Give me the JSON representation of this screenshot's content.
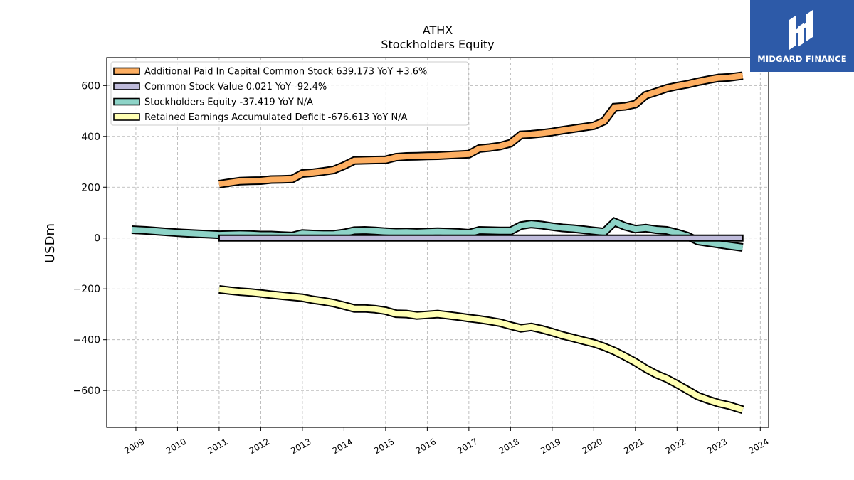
{
  "chart_data": {
    "type": "line",
    "title": "ATHX",
    "subtitle": "Stockholders  Equity",
    "xlabel": "",
    "ylabel": "USDm",
    "xlim": [
      2008.3,
      2024.2
    ],
    "ylim": [
      -745,
      710
    ],
    "yticks": [
      600,
      400,
      200,
      0,
      -200,
      -400,
      -600
    ],
    "ytick_labels": [
      "600",
      "400",
      "200",
      "0",
      "−200",
      "−400",
      "−600"
    ],
    "xticks": [
      2009,
      2010,
      2011,
      2012,
      2013,
      2014,
      2015,
      2016,
      2017,
      2018,
      2019,
      2020,
      2021,
      2022,
      2023,
      2024
    ],
    "xtick_labels": [
      "2009",
      "2010",
      "2011",
      "2012",
      "2013",
      "2014",
      "2015",
      "2016",
      "2017",
      "2018",
      "2019",
      "2020",
      "2021",
      "2022",
      "2023",
      "2024"
    ],
    "grid": true,
    "legend_position": "top-left",
    "series": [
      {
        "name": "Additional Paid In Capital Common Stock  639.173 YoY +3.6%",
        "color": "#fdae61",
        "style": "line",
        "x": [
          2011.0,
          2011.25,
          2011.5,
          2011.75,
          2012.0,
          2012.25,
          2012.5,
          2012.75,
          2013.0,
          2013.25,
          2013.5,
          2013.75,
          2014.0,
          2014.25,
          2014.5,
          2014.75,
          2015.0,
          2015.25,
          2015.5,
          2015.75,
          2016.0,
          2016.25,
          2016.5,
          2016.75,
          2017.0,
          2017.25,
          2017.5,
          2017.75,
          2018.0,
          2018.25,
          2018.5,
          2018.75,
          2019.0,
          2019.25,
          2019.5,
          2019.75,
          2020.0,
          2020.25,
          2020.5,
          2020.75,
          2021.0,
          2021.25,
          2021.5,
          2021.75,
          2022.0,
          2022.25,
          2022.5,
          2022.75,
          2023.0,
          2023.25,
          2023.58
        ],
        "values": [
          212,
          218,
          224,
          225,
          226,
          230,
          231,
          232,
          254,
          257,
          262,
          268,
          285,
          305,
          306,
          307,
          308,
          318,
          321,
          322,
          323,
          324,
          326,
          328,
          330,
          352,
          356,
          362,
          373,
          406,
          408,
          412,
          417,
          424,
          430,
          436,
          442,
          460,
          515,
          518,
          527,
          562,
          575,
          589,
          598,
          605,
          615,
          623,
          630,
          632,
          639
        ]
      },
      {
        "name": "Common Stock Value  0.021 YoY -92.4%",
        "color": "#bebada",
        "style": "band",
        "x": [
          2011.0,
          2023.58
        ],
        "values": [
          0.021,
          0.021
        ]
      },
      {
        "name": "Stockholders Equity  -37.419 YoY N/A",
        "color": "#8dd3c7",
        "style": "line",
        "x": [
          2008.9,
          2009.25,
          2009.5,
          2009.75,
          2010.0,
          2010.25,
          2010.5,
          2010.75,
          2011.0,
          2011.25,
          2011.5,
          2011.75,
          2012.0,
          2012.25,
          2012.5,
          2012.75,
          2013.0,
          2013.25,
          2013.5,
          2013.75,
          2014.0,
          2014.25,
          2014.5,
          2014.75,
          2015.0,
          2015.25,
          2015.5,
          2015.75,
          2016.0,
          2016.25,
          2016.5,
          2016.75,
          2017.0,
          2017.25,
          2017.5,
          2017.75,
          2018.0,
          2018.25,
          2018.5,
          2018.75,
          2019.0,
          2019.25,
          2019.5,
          2019.75,
          2020.0,
          2020.25,
          2020.5,
          2020.75,
          2021.0,
          2021.25,
          2021.5,
          2021.75,
          2022.0,
          2022.25,
          2022.5,
          2022.75,
          2023.0,
          2023.25,
          2023.58
        ],
        "values": [
          33,
          30,
          27,
          24,
          21,
          19,
          17,
          15,
          13,
          14,
          15,
          14,
          12,
          12,
          10,
          8,
          18,
          16,
          15,
          15,
          20,
          29,
          30,
          28,
          25,
          23,
          24,
          22,
          24,
          25,
          24,
          22,
          19,
          30,
          29,
          28,
          28,
          49,
          55,
          51,
          45,
          40,
          37,
          33,
          28,
          24,
          63,
          46,
          35,
          39,
          33,
          30,
          20,
          8,
          -12,
          -18,
          -24,
          -30,
          -37
        ]
      },
      {
        "name": "Retained Earnings Accumulated Deficit  -676.613 YoY N/A",
        "color": "#ffffb3",
        "style": "line",
        "x": [
          2011.0,
          2011.25,
          2011.5,
          2011.75,
          2012.0,
          2012.25,
          2012.5,
          2012.75,
          2013.0,
          2013.25,
          2013.5,
          2013.75,
          2014.0,
          2014.25,
          2014.5,
          2014.75,
          2015.0,
          2015.25,
          2015.5,
          2015.75,
          2016.0,
          2016.25,
          2016.5,
          2016.75,
          2017.0,
          2017.25,
          2017.5,
          2017.75,
          2018.0,
          2018.25,
          2018.5,
          2018.75,
          2019.0,
          2019.25,
          2019.5,
          2019.75,
          2020.0,
          2020.25,
          2020.5,
          2020.75,
          2021.0,
          2021.25,
          2021.5,
          2021.75,
          2022.0,
          2022.25,
          2022.5,
          2022.75,
          2023.0,
          2023.25,
          2023.58
        ],
        "values": [
          -202,
          -207,
          -211,
          -214,
          -218,
          -223,
          -227,
          -231,
          -235,
          -243,
          -249,
          -256,
          -266,
          -277,
          -277,
          -280,
          -286,
          -298,
          -299,
          -305,
          -302,
          -299,
          -304,
          -309,
          -315,
          -320,
          -326,
          -333,
          -345,
          -355,
          -350,
          -359,
          -370,
          -383,
          -393,
          -404,
          -414,
          -428,
          -445,
          -466,
          -488,
          -514,
          -536,
          -553,
          -575,
          -598,
          -622,
          -637,
          -650,
          -659,
          -676
        ]
      }
    ]
  },
  "logo": {
    "text": "MIDGARD FINANCE"
  }
}
